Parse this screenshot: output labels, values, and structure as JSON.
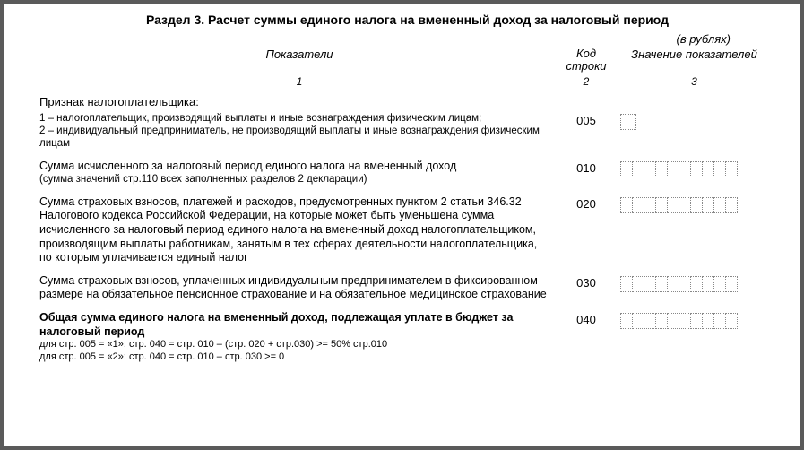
{
  "title": "Раздел 3. Расчет суммы единого налога на вмененный доход за налоговый период",
  "currency": "(в рублях)",
  "headers": {
    "desc": "Показатели",
    "code": "Код строки",
    "value": "Значение показателей",
    "sub_desc": "1",
    "sub_code": "2",
    "sub_value": "3"
  },
  "section_label": "Признак налогоплательщика:",
  "rows": [
    {
      "desc_lines": [
        "1 – налогоплательщик, производящий выплаты и иные вознаграждения физическим лицам;",
        "2 – индивидуальный предприниматель, не производящий выплаты и иные вознаграждения физическим лицам"
      ],
      "code": "005",
      "cells": 1,
      "small": true
    },
    {
      "desc_lines": [
        "Сумма исчисленного за налоговый период единого налога на вмененный доход",
        "(сумма значений стр.110 всех заполненных разделов 2 декларации)"
      ],
      "code": "010",
      "cells": 10,
      "mixed_small": true
    },
    {
      "desc_lines": [
        "Сумма страховых взносов, платежей и расходов, предусмотренных пунктом 2 статьи 346.32 Налогового кодекса Российской Федерации, на которые может быть уменьшена сумма исчисленного за налоговый период единого налога на вмененный доход налогоплательщиком, производящим выплаты работникам, занятым в тех сферах деятельности налогоплательщика, по которым уплачивается единый налог"
      ],
      "code": "020",
      "cells": 10
    },
    {
      "desc_lines": [
        "Сумма страховых взносов, уплаченных индивидуальным предпринимателем в фиксированном размере на обязательное пенсионное страхование и на обязательное медицинское страхование"
      ],
      "code": "030",
      "cells": 10
    },
    {
      "desc_lines": [
        "Общая сумма единого налога на вмененный доход, подлежащая уплате в бюджет за налоговый период"
      ],
      "code": "040",
      "cells": 10,
      "bold": true,
      "formulas": [
        "для стр. 005 = «1»: стр. 040 = стр. 010 – (стр. 020 + стр.030) >= 50% стр.010",
        "для стр. 005 = «2»: стр. 040 = стр. 010 – стр. 030 >= 0"
      ]
    }
  ],
  "style": {
    "page_bg": "#ffffff",
    "body_bg": "#5a5a5a",
    "text_color": "#000000",
    "cell_border": "#888888"
  }
}
